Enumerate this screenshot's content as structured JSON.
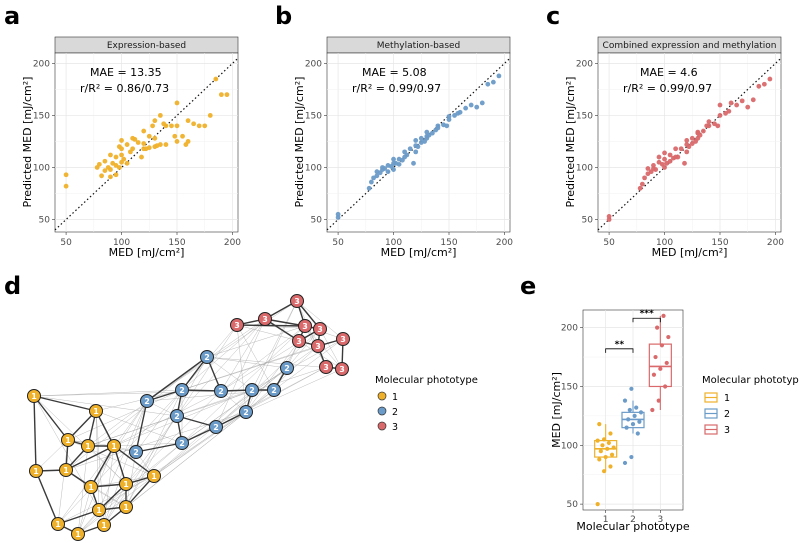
{
  "panels": {
    "a": {
      "letter": "a",
      "strip": "Expression-based",
      "mae": "MAE = 13.35",
      "r": "r/R² = 0.86/0.73",
      "color": "#f0b12a"
    },
    "b": {
      "letter": "b",
      "strip": "Methylation-based",
      "mae": "MAE = 5.08",
      "r": "r/R² = 0.99/0.97",
      "color": "#6b9bc8"
    },
    "c": {
      "letter": "c",
      "strip": "Combined expression and methylation",
      "mae": "MAE = 4.6",
      "r": "r/R² = 0.99/0.97",
      "color": "#d9696b"
    },
    "d": {
      "letter": "d"
    },
    "e": {
      "letter": "e"
    }
  },
  "axis_labels": {
    "xlabel": "MED [mJ/cm²]",
    "ylabel": "Predicted MED [mJ/cm²]",
    "box_ylabel": "MED [mJ/cm²]",
    "box_xlabel": "Molecular phototype"
  },
  "legend": {
    "title": "Molecular phototype",
    "items": [
      {
        "label": "1",
        "color": "#f0b12a"
      },
      {
        "label": "2",
        "color": "#6b9bc8"
      },
      {
        "label": "3",
        "color": "#d9696b"
      }
    ]
  },
  "chart_data": [
    {
      "id": "a",
      "type": "scatter",
      "title": "Expression-based",
      "xlabel": "MED [mJ/cm²]",
      "ylabel": "Predicted MED [mJ/cm²]",
      "xlim": [
        40,
        205
      ],
      "ylim": [
        38,
        210
      ],
      "xticks": [
        50,
        100,
        150,
        200
      ],
      "yticks": [
        50,
        100,
        150,
        200
      ],
      "diagonal": true,
      "x": [
        50,
        50,
        78,
        80,
        82,
        85,
        85,
        88,
        90,
        90,
        90,
        92,
        95,
        95,
        95,
        98,
        98,
        100,
        100,
        100,
        100,
        102,
        105,
        105,
        108,
        110,
        110,
        112,
        115,
        118,
        120,
        120,
        120,
        122,
        125,
        125,
        128,
        130,
        130,
        130,
        132,
        135,
        135,
        138,
        140,
        140,
        145,
        148,
        150,
        150,
        150,
        155,
        158,
        160,
        160,
        165,
        170,
        175,
        180,
        185,
        190,
        195
      ],
      "y": [
        82,
        93,
        100,
        103,
        92,
        97,
        106,
        100,
        91,
        98,
        112,
        104,
        93,
        102,
        110,
        100,
        120,
        105,
        112,
        118,
        126,
        108,
        104,
        122,
        115,
        118,
        128,
        127,
        124,
        110,
        118,
        123,
        135,
        118,
        119,
        130,
        140,
        120,
        128,
        145,
        121,
        122,
        150,
        142,
        122,
        140,
        140,
        130,
        125,
        140,
        162,
        130,
        122,
        125,
        145,
        142,
        140,
        140,
        150,
        185,
        170,
        170
      ]
    },
    {
      "id": "b",
      "type": "scatter",
      "title": "Methylation-based",
      "xlabel": "MED [mJ/cm²]",
      "ylabel": "Predicted MED [mJ/cm²]",
      "xlim": [
        40,
        205
      ],
      "ylim": [
        38,
        210
      ],
      "xticks": [
        50,
        100,
        150,
        200
      ],
      "yticks": [
        50,
        100,
        150,
        200
      ],
      "diagonal": true,
      "x": [
        50,
        50,
        78,
        80,
        82,
        85,
        85,
        88,
        90,
        90,
        92,
        95,
        95,
        98,
        100,
        100,
        100,
        102,
        105,
        105,
        108,
        110,
        110,
        112,
        115,
        118,
        120,
        120,
        120,
        122,
        125,
        125,
        128,
        130,
        130,
        130,
        132,
        135,
        138,
        140,
        140,
        145,
        148,
        150,
        150,
        155,
        158,
        160,
        165,
        170,
        175,
        180,
        185,
        190,
        195
      ],
      "y": [
        52,
        55,
        80,
        86,
        90,
        92,
        96,
        95,
        98,
        100,
        99,
        96,
        102,
        101,
        104,
        98,
        108,
        104,
        103,
        108,
        107,
        110,
        115,
        112,
        118,
        104,
        115,
        121,
        126,
        120,
        124,
        128,
        125,
        128,
        130,
        134,
        131,
        133,
        136,
        138,
        140,
        141,
        140,
        146,
        149,
        150,
        152,
        153,
        157,
        160,
        158,
        162,
        180,
        182,
        188
      ]
    },
    {
      "id": "c",
      "type": "scatter",
      "title": "Combined expression and methylation",
      "xlabel": "MED [mJ/cm²]",
      "ylabel": "Predicted MED [mJ/cm²]",
      "xlim": [
        40,
        205
      ],
      "ylim": [
        38,
        210
      ],
      "xticks": [
        50,
        100,
        150,
        200
      ],
      "yticks": [
        50,
        100,
        150,
        200
      ],
      "diagonal": true,
      "x": [
        50,
        50,
        78,
        80,
        82,
        85,
        85,
        88,
        90,
        90,
        92,
        95,
        95,
        98,
        100,
        100,
        100,
        102,
        105,
        105,
        108,
        110,
        110,
        112,
        115,
        118,
        120,
        120,
        120,
        122,
        125,
        125,
        128,
        130,
        130,
        130,
        132,
        135,
        138,
        140,
        140,
        145,
        148,
        150,
        150,
        155,
        158,
        160,
        165,
        170,
        175,
        180,
        185,
        190,
        195
      ],
      "y": [
        50,
        53,
        80,
        84,
        90,
        94,
        99,
        96,
        99,
        102,
        98,
        105,
        110,
        103,
        108,
        100,
        114,
        104,
        106,
        112,
        109,
        110,
        118,
        110,
        118,
        104,
        115,
        122,
        126,
        120,
        123,
        128,
        125,
        128,
        133,
        134,
        131,
        135,
        140,
        140,
        144,
        142,
        140,
        150,
        160,
        152,
        154,
        162,
        160,
        164,
        158,
        165,
        178,
        180,
        185
      ]
    },
    {
      "id": "e",
      "type": "box",
      "xlabel": "Molecular phototype",
      "ylabel": "MED [mJ/cm²]",
      "categories": [
        "1",
        "2",
        "3"
      ],
      "ylim": [
        45,
        215
      ],
      "yticks": [
        50,
        100,
        150,
        200
      ],
      "boxes": [
        {
          "label": "1",
          "min": 78,
          "q1": 90,
          "median": 97,
          "q3": 104,
          "max": 118,
          "points": [
            50,
            78,
            82,
            88,
            90,
            92,
            95,
            97,
            98,
            100,
            102,
            104,
            105,
            110,
            118
          ]
        },
        {
          "label": "2",
          "min": 110,
          "q1": 115,
          "median": 122,
          "q3": 128,
          "max": 138,
          "points": [
            85,
            90,
            110,
            115,
            118,
            120,
            122,
            125,
            128,
            130,
            132,
            138,
            148
          ]
        },
        {
          "label": "3",
          "min": 130,
          "q1": 150,
          "median": 167,
          "q3": 186,
          "max": 210,
          "points": [
            130,
            138,
            150,
            160,
            165,
            170,
            175,
            185,
            192,
            200,
            210
          ]
        }
      ],
      "significance": [
        {
          "from": "1",
          "to": "2",
          "label": "**"
        },
        {
          "from": "2",
          "to": "3",
          "label": "***"
        }
      ]
    }
  ],
  "network": {
    "nodes": [
      {
        "label": "1",
        "group": 1
      },
      {
        "label": "1",
        "group": 1
      },
      {
        "label": "1",
        "group": 1
      },
      {
        "label": "1",
        "group": 1
      },
      {
        "label": "1",
        "group": 1
      },
      {
        "label": "1",
        "group": 1
      },
      {
        "label": "1",
        "group": 1
      },
      {
        "label": "1",
        "group": 1
      },
      {
        "label": "1",
        "group": 1
      },
      {
        "label": "1",
        "group": 1
      },
      {
        "label": "1",
        "group": 1
      },
      {
        "label": "1",
        "group": 1
      },
      {
        "label": "1",
        "group": 1
      },
      {
        "label": "1",
        "group": 1
      },
      {
        "label": "1",
        "group": 1
      },
      {
        "label": "2",
        "group": 2
      },
      {
        "label": "2",
        "group": 2
      },
      {
        "label": "2",
        "group": 2
      },
      {
        "label": "2",
        "group": 2
      },
      {
        "label": "2",
        "group": 2
      },
      {
        "label": "2",
        "group": 2
      },
      {
        "label": "2",
        "group": 2
      },
      {
        "label": "2",
        "group": 2
      },
      {
        "label": "2",
        "group": 2
      },
      {
        "label": "2",
        "group": 2
      },
      {
        "label": "2",
        "group": 2
      },
      {
        "label": "2",
        "group": 2
      },
      {
        "label": "3",
        "group": 3
      },
      {
        "label": "3",
        "group": 3
      },
      {
        "label": "3",
        "group": 3
      },
      {
        "label": "3",
        "group": 3
      },
      {
        "label": "3",
        "group": 3
      },
      {
        "label": "3",
        "group": 3
      },
      {
        "label": "3",
        "group": 3
      },
      {
        "label": "3",
        "group": 3
      },
      {
        "label": "3",
        "group": 3
      },
      {
        "label": "3",
        "group": 3
      }
    ]
  }
}
